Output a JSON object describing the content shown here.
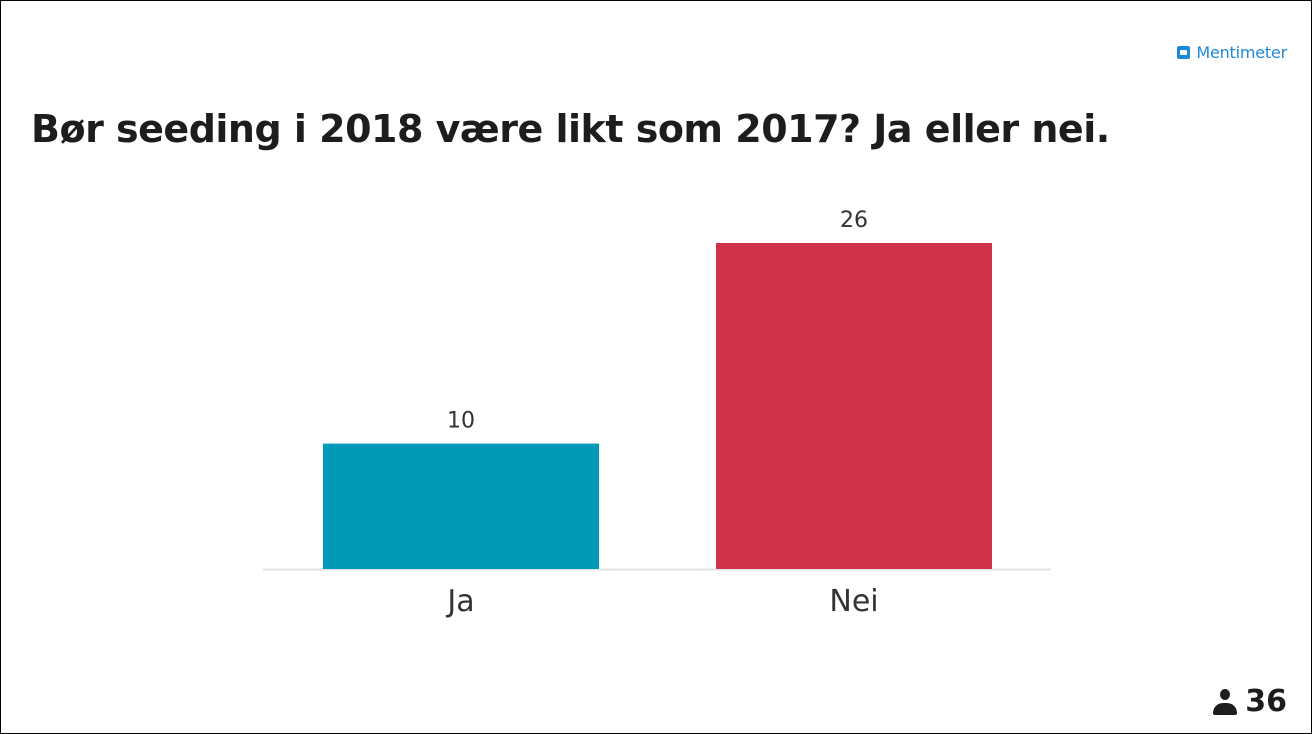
{
  "brand": {
    "name": "Mentimeter",
    "icon": "mentimeter-logo-icon",
    "color": "#1d8ad6"
  },
  "question": {
    "title": "Bør seeding i 2018 være likt som 2017? Ja eller nei."
  },
  "participants": {
    "icon": "user-icon",
    "count": "36"
  },
  "chart_data": {
    "type": "bar",
    "categories": [
      "Ja",
      "Nei"
    ],
    "values": [
      10,
      26
    ],
    "colors": [
      "#009ab8",
      "#d0324c"
    ],
    "title": "Bør seeding i 2018 være likt som 2017? Ja eller nei.",
    "grid": false,
    "legend": "none"
  }
}
